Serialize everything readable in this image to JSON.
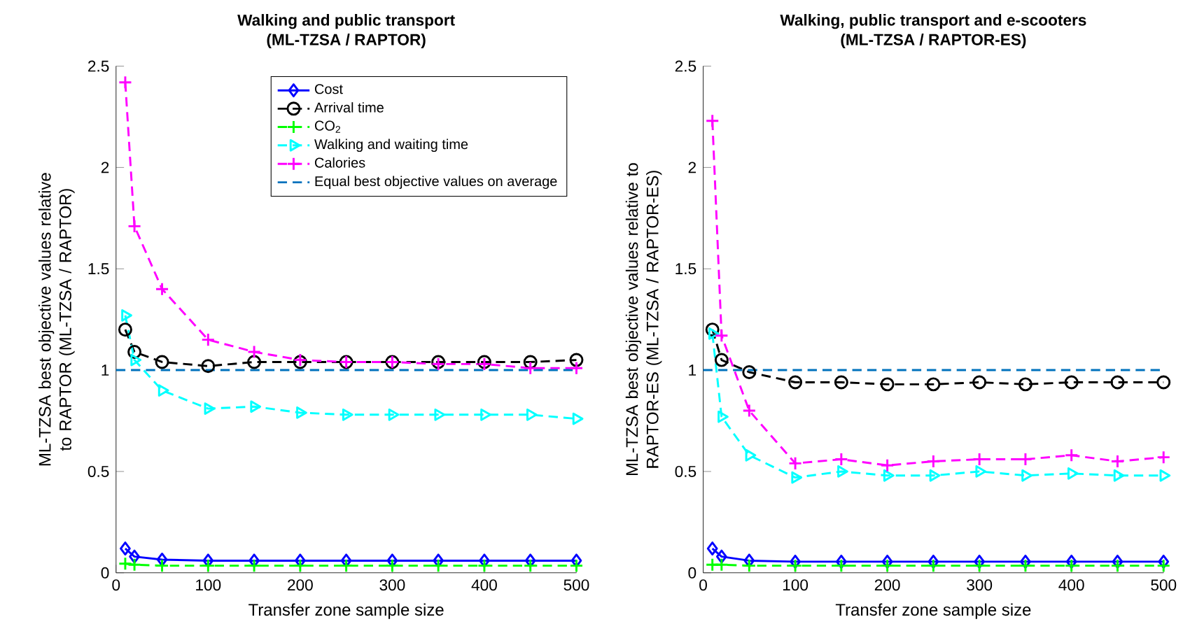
{
  "chart_data": [
    {
      "type": "line",
      "title": "Walking and public transport",
      "subtitle": "(ML-TZSA / RAPTOR)",
      "xlabel": "Transfer zone sample size",
      "ylabel": "ML-TZSA best objective values relative to RAPTOR (ML-TZSA / RAPTOR)",
      "x": [
        10,
        20,
        50,
        100,
        150,
        200,
        250,
        300,
        350,
        400,
        450,
        500
      ],
      "xlim": [
        0,
        500
      ],
      "xticks": [
        0,
        100,
        200,
        300,
        400,
        500
      ],
      "ylim": [
        0,
        2.5
      ],
      "yticks": [
        0,
        0.5,
        1,
        1.5,
        2,
        2.5
      ],
      "legend": "top right",
      "series": [
        {
          "name": "Cost",
          "color": "#0000ff",
          "marker": "diamond",
          "line_style": "solid",
          "values": [
            0.12,
            0.08,
            0.065,
            0.06,
            0.06,
            0.06,
            0.06,
            0.06,
            0.06,
            0.06,
            0.06,
            0.06
          ]
        },
        {
          "name": "Arrival time",
          "color": "#000000",
          "marker": "circle",
          "line_style": "dashed",
          "values": [
            1.2,
            1.09,
            1.04,
            1.02,
            1.04,
            1.04,
            1.04,
            1.04,
            1.04,
            1.04,
            1.04,
            1.05
          ]
        },
        {
          "name": "CO$_{2}$",
          "color": "#00ff00",
          "marker": "cross",
          "line_style": "dashed",
          "values": [
            0.045,
            0.04,
            0.035,
            0.035,
            0.035,
            0.035,
            0.035,
            0.035,
            0.035,
            0.035,
            0.035,
            0.035
          ]
        },
        {
          "name": "Walking and waiting time",
          "color": "#00ffff",
          "marker": "triangle",
          "line_style": "dashed",
          "values": [
            1.27,
            1.05,
            0.9,
            0.81,
            0.82,
            0.79,
            0.78,
            0.78,
            0.78,
            0.78,
            0.78,
            0.76
          ]
        },
        {
          "name": "Calories",
          "color": "#ff00ff",
          "marker": "cross",
          "line_style": "dashed",
          "values": [
            2.42,
            1.71,
            1.4,
            1.15,
            1.09,
            1.05,
            1.04,
            1.04,
            1.03,
            1.03,
            1.01,
            1.01
          ]
        }
      ],
      "ref_lines": [
        {
          "axis": "y",
          "value": 1,
          "label": "Equal best objective values on average",
          "color": "#0072bd",
          "line_style": "dashed"
        }
      ]
    },
    {
      "type": "line",
      "title": "Walking, public transport and e-scooters",
      "subtitle": "(ML-TZSA / RAPTOR-ES)",
      "xlabel": "Transfer zone sample size",
      "ylabel": "ML-TZSA best objective values relative to RAPTOR-ES (ML-TZSA / RAPTOR-ES)",
      "x": [
        10,
        20,
        50,
        100,
        150,
        200,
        250,
        300,
        350,
        400,
        450,
        500
      ],
      "xlim": [
        0,
        500
      ],
      "xticks": [
        0,
        100,
        200,
        300,
        400,
        500
      ],
      "ylim": [
        0,
        2.5
      ],
      "yticks": [
        0,
        0.5,
        1,
        1.5,
        2,
        2.5
      ],
      "series": [
        {
          "color": "#0000ff",
          "marker": "diamond",
          "line_style": "solid",
          "values": [
            0.12,
            0.08,
            0.06,
            0.055,
            0.055,
            0.055,
            0.055,
            0.055,
            0.055,
            0.055,
            0.055,
            0.055
          ]
        },
        {
          "color": "#000000",
          "marker": "circle",
          "line_style": "dashed",
          "values": [
            1.2,
            1.05,
            0.99,
            0.94,
            0.94,
            0.93,
            0.93,
            0.94,
            0.93,
            0.94,
            0.94,
            0.94
          ]
        },
        {
          "color": "#00ff00",
          "marker": "cross",
          "line_style": "dashed",
          "values": [
            0.04,
            0.04,
            0.035,
            0.035,
            0.035,
            0.035,
            0.035,
            0.035,
            0.035,
            0.035,
            0.035,
            0.035
          ]
        },
        {
          "color": "#00ffff",
          "marker": "triangle",
          "line_style": "dashed",
          "values": [
            1.18,
            0.77,
            0.58,
            0.47,
            0.5,
            0.48,
            0.48,
            0.5,
            0.48,
            0.49,
            0.48,
            0.48
          ]
        },
        {
          "color": "#ff00ff",
          "marker": "cross",
          "line_style": "dashed",
          "values": [
            2.23,
            1.17,
            0.8,
            0.54,
            0.56,
            0.53,
            0.55,
            0.56,
            0.56,
            0.58,
            0.55,
            0.57
          ]
        }
      ],
      "ref_lines": [
        {
          "axis": "y",
          "value": 1,
          "color": "#0072bd",
          "line_style": "dashed"
        }
      ]
    }
  ]
}
